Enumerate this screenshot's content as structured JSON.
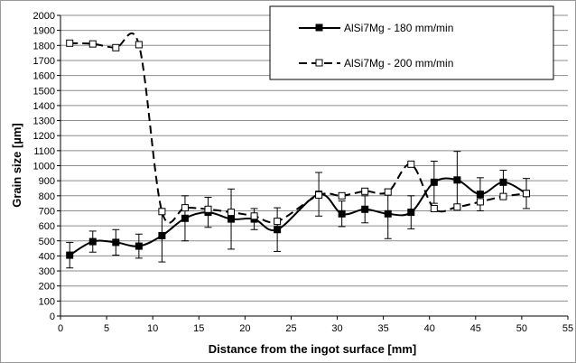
{
  "chart_data": {
    "type": "line",
    "xlabel": "Distance from the ingot surface [mm]",
    "ylabel": "Grain size [µm]",
    "xlim": [
      0,
      55
    ],
    "ylim": [
      0,
      2000
    ],
    "xticks": [
      "0",
      "5",
      "10",
      "15",
      "20",
      "25",
      "30",
      "35",
      "40",
      "45",
      "50",
      "55"
    ],
    "yticks": [
      "0",
      "100",
      "200",
      "300",
      "400",
      "500",
      "600",
      "700",
      "800",
      "900",
      "1000",
      "1100",
      "1200",
      "1300",
      "1400",
      "1500",
      "1600",
      "1700",
      "1800",
      "1900",
      "2000"
    ],
    "grid": "horizontal",
    "legend_position": "top-right",
    "series": [
      {
        "name": "AlSi7Mg - 180 mm/min",
        "marker": "filled-square",
        "line": "solid",
        "color": "#000000",
        "x": [
          1,
          3.5,
          6,
          8.5,
          11,
          13.5,
          16,
          18.5,
          21,
          23.5,
          28,
          30.5,
          33,
          35.5,
          38,
          40.5,
          43,
          45.5,
          48,
          50.5
        ],
        "y": [
          405,
          495,
          490,
          465,
          535,
          650,
          690,
          645,
          645,
          575,
          810,
          680,
          710,
          680,
          690,
          890,
          905,
          810,
          890,
          815
        ],
        "error": [
          85,
          70,
          85,
          80,
          175,
          150,
          100,
          200,
          70,
          145,
          145,
          85,
          90,
          165,
          110,
          140,
          190,
          110,
          80,
          100
        ]
      },
      {
        "name": "AlSi7Mg - 200 mm/min",
        "marker": "open-square",
        "line": "dashed",
        "color": "#000000",
        "x": [
          1,
          3.5,
          6,
          8.5,
          11,
          13.5,
          16,
          18.5,
          21,
          23.5,
          28,
          30.5,
          33,
          35.5,
          38,
          40.5,
          43,
          45.5,
          48,
          50.5
        ],
        "y": [
          1815,
          1810,
          1785,
          1805,
          695,
          720,
          710,
          690,
          665,
          630,
          805,
          800,
          830,
          825,
          1010,
          715,
          725,
          760,
          795,
          815
        ]
      }
    ]
  }
}
